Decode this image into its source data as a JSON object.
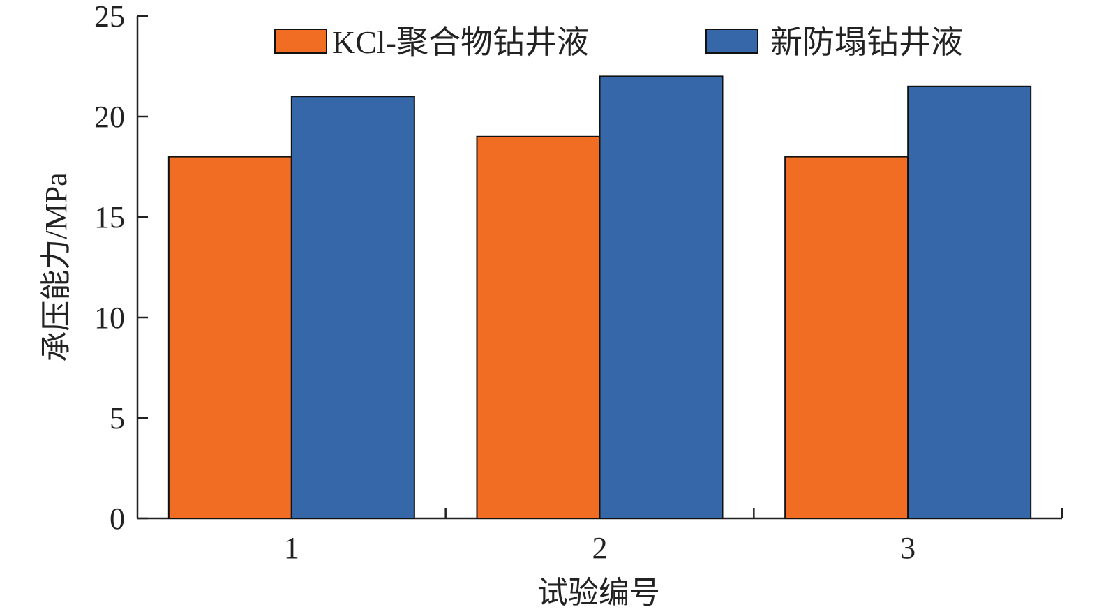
{
  "chart_data": {
    "type": "bar",
    "categories": [
      "1",
      "2",
      "3"
    ],
    "series": [
      {
        "name": "KCl-聚合物钻井液",
        "values": [
          18,
          19,
          18
        ],
        "color": "#F26D24"
      },
      {
        "name": "新防塌钻井液",
        "values": [
          21,
          22,
          21.5
        ],
        "color": "#3667A8"
      }
    ],
    "xlabel": "试验编号",
    "ylabel": "承压能力/MPa",
    "ylim": [
      0,
      25
    ],
    "yticks": [
      0,
      5,
      10,
      15,
      20,
      25
    ],
    "grid": false,
    "legend_position": "top"
  }
}
